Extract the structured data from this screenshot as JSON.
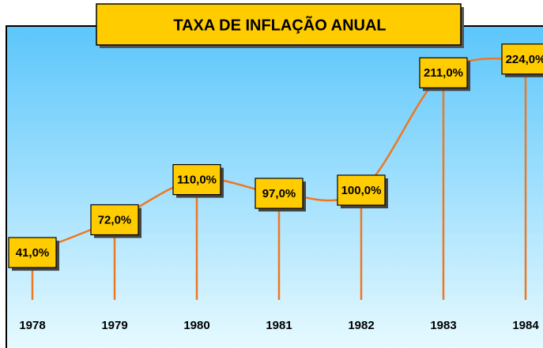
{
  "chart_data": {
    "type": "line",
    "title": "TAXA DE INFLAÇÃO ANUAL",
    "categories": [
      "1978",
      "1979",
      "1980",
      "1981",
      "1982",
      "1983",
      "1984"
    ],
    "values": [
      41,
      72,
      110,
      97,
      100,
      211,
      224
    ],
    "value_labels": [
      "41,0%",
      "72,0%",
      "110,0%",
      "97,0%",
      "100,0%",
      "211,0%",
      "224,0%"
    ],
    "color": "#ee7722",
    "label_color": "#ffcc00",
    "ylim": [
      0,
      250
    ]
  }
}
